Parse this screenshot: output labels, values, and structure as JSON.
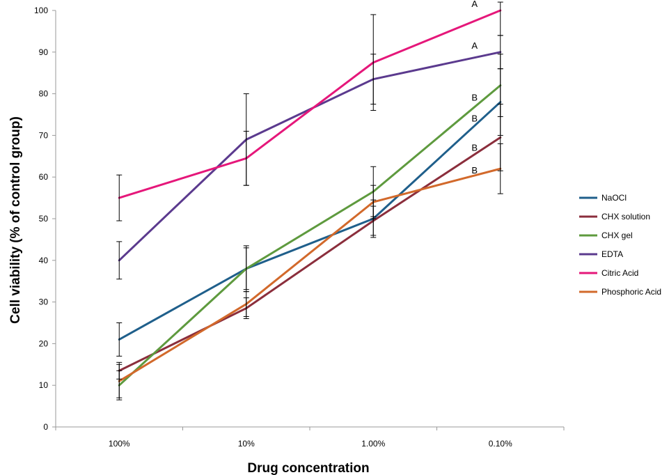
{
  "chart_data": {
    "type": "line",
    "title": "",
    "xlabel": "Drug concentration",
    "ylabel": "Cell viability (% of control group)",
    "categories": [
      "100%",
      "10%",
      "1.00%",
      "0.10%"
    ],
    "ylim": [
      0,
      100
    ],
    "yticks": [
      "0",
      "10",
      "20",
      "30",
      "40",
      "50",
      "60",
      "70",
      "80",
      "90",
      "100"
    ],
    "grid": false,
    "legend_position": "right",
    "series": [
      {
        "name": "NaOCl",
        "color": "#1F5F8B",
        "values": [
          21,
          38,
          50,
          78
        ],
        "error": [
          4,
          5,
          4.5,
          8
        ]
      },
      {
        "name": "CHX solution",
        "color": "#8B2E3C",
        "values": [
          13.5,
          28.5,
          49.5,
          69.5
        ],
        "error": [
          2,
          2.5,
          3.5,
          8
        ]
      },
      {
        "name": "CHX gel",
        "color": "#5E9A3E",
        "values": [
          10,
          38,
          56.5,
          82
        ],
        "error": [
          3.5,
          5.5,
          6,
          7.5
        ]
      },
      {
        "name": "EDTA",
        "color": "#5B3A8E",
        "values": [
          40,
          69,
          83.5,
          90
        ],
        "error": [
          4.5,
          11,
          6,
          4
        ]
      },
      {
        "name": "Citric Acid",
        "color": "#E5177A",
        "values": [
          55,
          64.5,
          87.5,
          100
        ],
        "error": [
          5.5,
          6.5,
          11.5,
          6
        ]
      },
      {
        "name": "Phosphoric Acid",
        "color": "#D2692B",
        "values": [
          11,
          29.5,
          54,
          62
        ],
        "error": [
          4,
          3,
          4,
          6
        ]
      }
    ],
    "annotations": [
      {
        "text": "A",
        "category": "0.10%",
        "y": 101.5
      },
      {
        "text": "A",
        "category": "0.10%",
        "y": 91.5
      },
      {
        "text": "B",
        "category": "0.10%",
        "y": 79
      },
      {
        "text": "B",
        "category": "0.10%",
        "y": 74
      },
      {
        "text": "B",
        "category": "0.10%",
        "y": 67
      },
      {
        "text": "B",
        "category": "0.10%",
        "y": 61.5
      }
    ]
  }
}
